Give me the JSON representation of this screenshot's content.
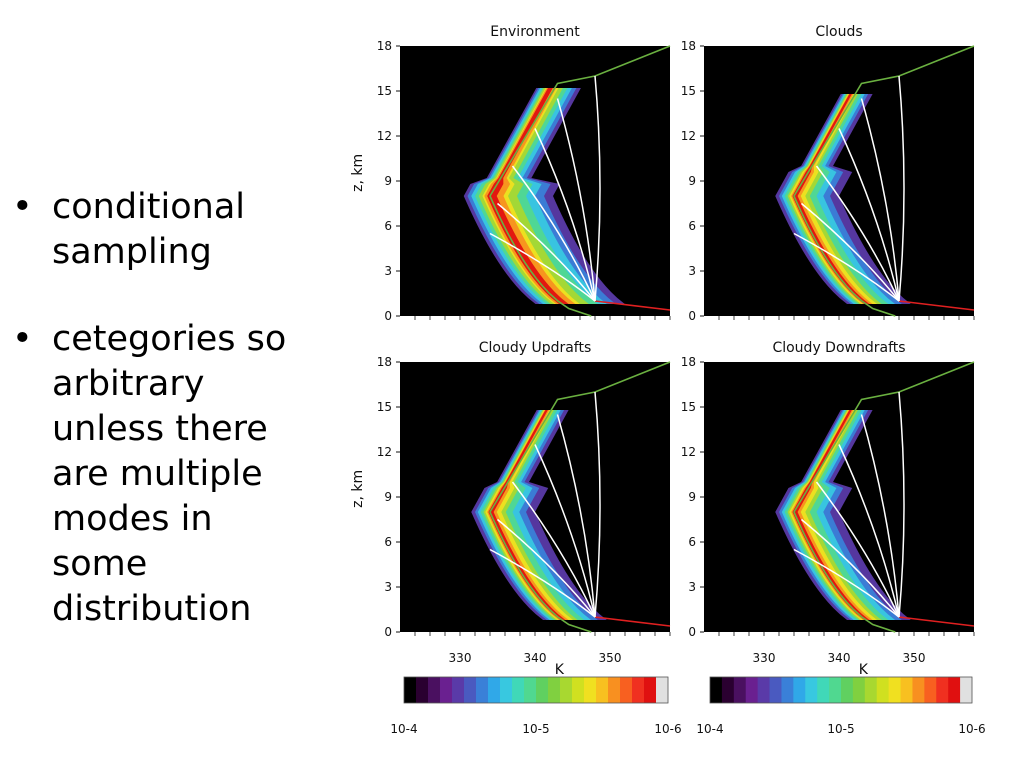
{
  "bullets": [
    {
      "text": "conditional sampling"
    },
    {
      "text": "cetegories so arbitrary unless there are multiple modes in some distribution"
    }
  ],
  "chart_data": [
    {
      "type": "heatmap",
      "title": "Environment",
      "xlabel": "",
      "ylabel": "z, km",
      "ylim": [
        0,
        18
      ],
      "yticks": [
        0,
        3,
        6,
        9,
        12,
        15,
        18
      ],
      "xticks": [
        330,
        340,
        350
      ],
      "xlim": [
        322,
        358
      ]
    },
    {
      "type": "heatmap",
      "title": "Clouds",
      "xlabel": "",
      "ylabel": "",
      "ylim": [
        0,
        18
      ],
      "yticks": [
        0,
        3,
        6,
        9,
        12,
        15,
        18
      ],
      "xticks": [
        330,
        340,
        350
      ],
      "xlim": [
        322,
        358
      ]
    },
    {
      "type": "heatmap",
      "title": "Cloudy Updrafts",
      "xlabel": "K",
      "ylabel": "z, km",
      "ylim": [
        0,
        18
      ],
      "yticks": [
        0,
        3,
        6,
        9,
        12,
        15,
        18
      ],
      "xticks": [
        330,
        340,
        350
      ],
      "xlim": [
        322,
        358
      ]
    },
    {
      "type": "heatmap",
      "title": "Cloudy Downdrafts",
      "xlabel": "K",
      "ylabel": "",
      "ylim": [
        0,
        18
      ],
      "yticks": [
        0,
        3,
        6,
        9,
        12,
        15,
        18
      ],
      "xticks": [
        330,
        340,
        350
      ],
      "xlim": [
        322,
        358
      ]
    }
  ],
  "colorbar": {
    "labels": [
      "10-4",
      "10-5",
      "10-6"
    ],
    "colors": [
      "#000000",
      "#2a0030",
      "#4a1060",
      "#6a2090",
      "#5a3aa8",
      "#4a5ac0",
      "#3a80d8",
      "#30a8e8",
      "#38c8e0",
      "#40d8b8",
      "#50d890",
      "#60d060",
      "#80d040",
      "#a8d830",
      "#d0e020",
      "#f0e020",
      "#f8c020",
      "#f89020",
      "#f86020",
      "#f03020",
      "#e01010",
      "#e0e0e0"
    ]
  }
}
